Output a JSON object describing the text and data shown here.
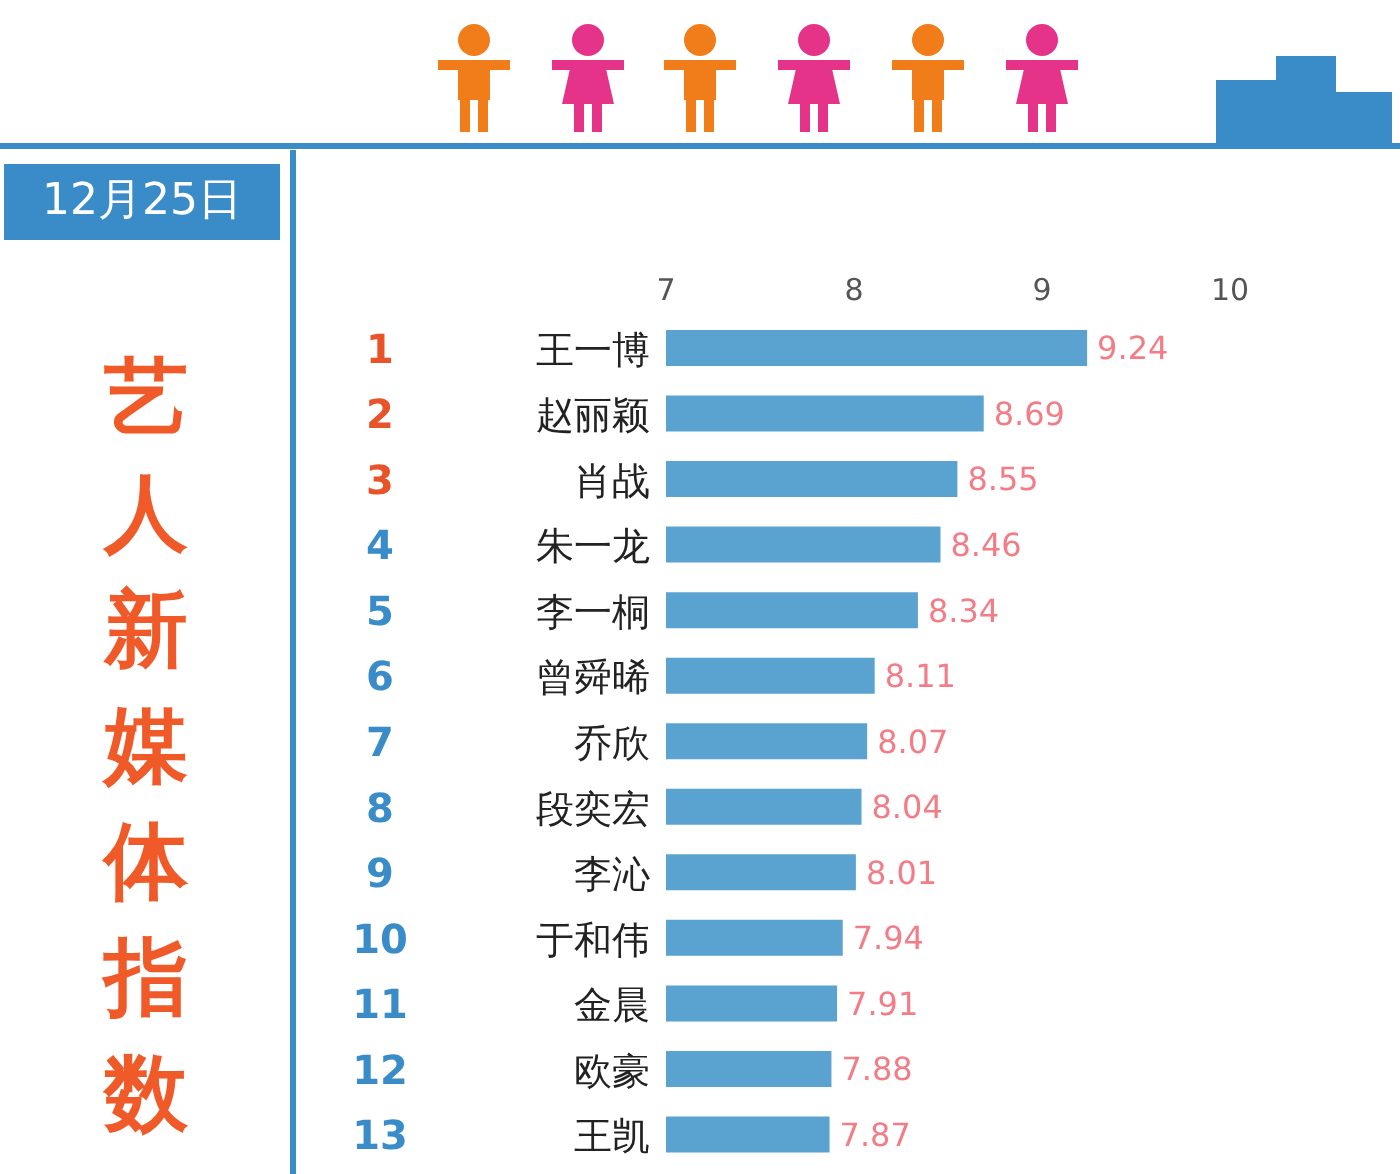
{
  "chart_data": {
    "type": "bar",
    "orientation": "horizontal",
    "title": "艺人新媒体指数",
    "subtitle": "12月25日",
    "categories": [
      "王一博",
      "赵丽颖",
      "肖战",
      "朱一龙",
      "李一桐",
      "曾舜晞",
      "乔欣",
      "段奕宏",
      "李沁",
      "于和伟",
      "金晨",
      "欧豪",
      "王凯"
    ],
    "values": [
      9.24,
      8.69,
      8.55,
      8.46,
      8.34,
      8.11,
      8.07,
      8.04,
      8.01,
      7.94,
      7.91,
      7.88,
      7.87
    ],
    "color": "#5aa2cf",
    "xlim": [
      7,
      10
    ],
    "xticks": [
      7,
      8,
      9,
      10
    ],
    "grid": false,
    "data_labels": true,
    "annotations": [
      "1",
      "2",
      "3",
      "4",
      "5",
      "6",
      "7",
      "8",
      "9",
      "10",
      "11",
      "12",
      "13"
    ]
  }
}
